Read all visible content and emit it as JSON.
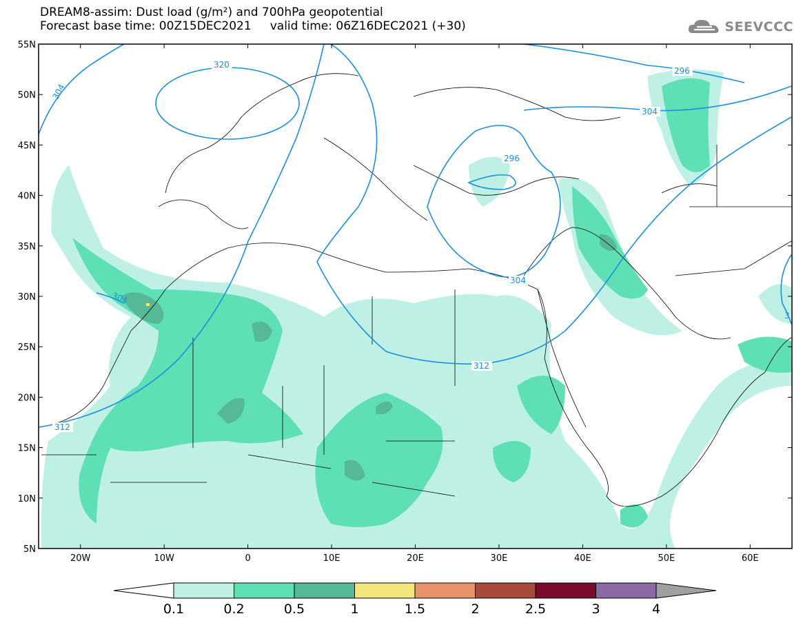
{
  "header": {
    "line1": "DREAM8-assim: Dust load (g/m²) and 700hPa geopotential",
    "line2_left": "Forecast base time: 00Z15DEC2021",
    "line2_right": "valid time: 06Z16DEC2021 (+30)"
  },
  "logo": {
    "text": "SEEVCCC",
    "icon": "cloud-icon"
  },
  "map": {
    "lon_range": [
      -25,
      65
    ],
    "lat_range": [
      5,
      55
    ],
    "lat_ticks": [
      "55N",
      "50N",
      "45N",
      "40N",
      "35N",
      "30N",
      "25N",
      "20N",
      "15N",
      "10N",
      "5N"
    ],
    "lon_ticks": [
      "20W",
      "10W",
      "0",
      "10E",
      "20E",
      "30E",
      "40E",
      "50E",
      "60E"
    ],
    "contour_labels": [
      "320",
      "304",
      "296",
      "304",
      "304",
      "312",
      "312",
      "296",
      "304",
      "3"
    ]
  },
  "colorbar": {
    "labels": [
      "0.1",
      "0.2",
      "0.5",
      "1",
      "1.5",
      "2",
      "2.5",
      "3",
      "4"
    ],
    "colors": [
      "#bff0e6",
      "#5ee0b4",
      "#55b896",
      "#f2e77a",
      "#ea936b",
      "#a84a3c",
      "#7c0a2a",
      "#8d6aa4"
    ],
    "under_color": "#ffffff",
    "over_color": "#a0a0a0"
  },
  "colors": {
    "dust_low": "#bff0e6",
    "dust_mid": "#5ee0b4",
    "dust_high": "#55b896",
    "contour": "#1a8fe0"
  }
}
